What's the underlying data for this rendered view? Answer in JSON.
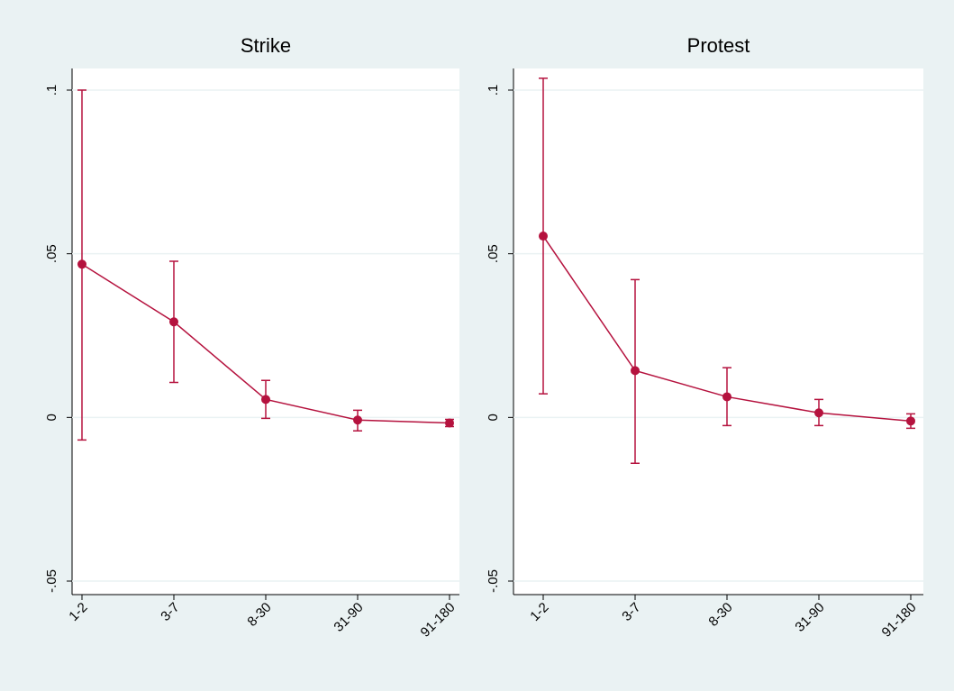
{
  "chart_data": [
    {
      "type": "line",
      "title": "Strike",
      "categories": [
        "1-2",
        "3-7",
        "8-30",
        "31-90",
        "91-180"
      ],
      "values": [
        0.0468,
        0.0292,
        0.0055,
        -0.0008,
        -0.0017
      ],
      "lower": [
        -0.0069,
        0.0107,
        -0.0003,
        -0.0041,
        -0.0028
      ],
      "upper": [
        0.1,
        0.0477,
        0.0113,
        0.0022,
        -0.0006
      ],
      "color": "#b5123e",
      "ylim": [
        -0.05,
        0.1
      ],
      "yticks": [
        {
          "value": -0.05,
          "label": "-.05"
        },
        0,
        {
          "value": 0.05,
          "label": ".05"
        },
        {
          "value": 0.1,
          "label": ".1"
        }
      ],
      "grid": true
    },
    {
      "type": "line",
      "title": "Protest",
      "categories": [
        "1-2",
        "3-7",
        "8-30",
        "31-90",
        "91-180"
      ],
      "values": [
        0.0554,
        0.0143,
        0.0063,
        0.0014,
        -0.0011
      ],
      "lower": [
        0.0072,
        -0.014,
        -0.0025,
        -0.0025,
        -0.0033
      ],
      "upper": [
        0.1036,
        0.0421,
        0.0152,
        0.0055,
        0.0011
      ],
      "color": "#b5123e",
      "ylim": [
        -0.05,
        0.1
      ],
      "yticks": [
        {
          "value": -0.05,
          "label": "-.05"
        },
        0,
        {
          "value": 0.05,
          "label": ".05"
        },
        {
          "value": 0.1,
          "label": ".1"
        }
      ],
      "grid": true
    }
  ]
}
